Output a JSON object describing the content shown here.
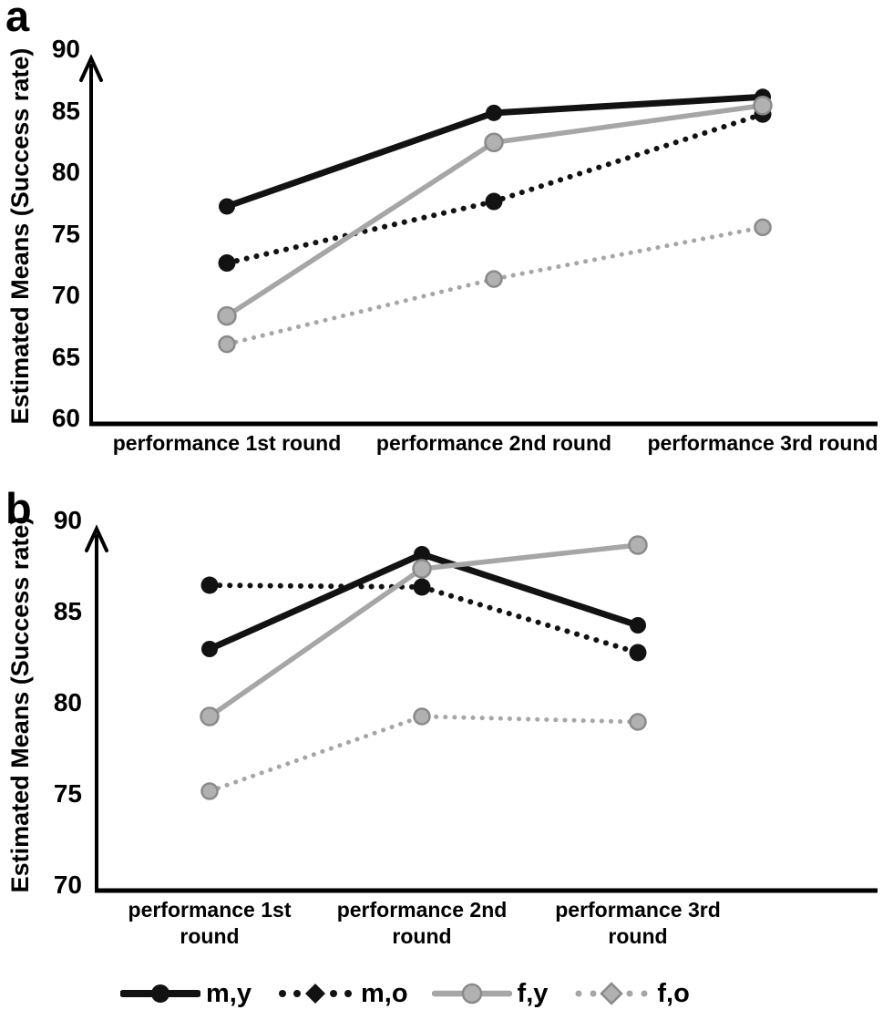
{
  "chart_data": [
    {
      "type": "line",
      "panel_label": "a",
      "title": "",
      "xlabel": "",
      "ylabel": "Estimated Means (Success rate)",
      "categories": [
        "performance 1st round",
        "performance 2nd round",
        "performance 3rd round"
      ],
      "ylim": [
        60,
        90
      ],
      "yticks": [
        90,
        85,
        80,
        75,
        70,
        65,
        60
      ],
      "grid": false,
      "axis_style": "arrow-y-axis, plain-baseline, no-tick-marks",
      "series": [
        {
          "name": "m,y",
          "style": "solid",
          "color": "#121212",
          "values": [
            77.3,
            84.9,
            86.2
          ]
        },
        {
          "name": "m,o",
          "style": "dotted",
          "color": "#121212",
          "values": [
            72.7,
            77.7,
            84.8
          ]
        },
        {
          "name": "f,y",
          "style": "solid",
          "color": "#a6a6a6",
          "values": [
            68.4,
            82.5,
            85.5
          ]
        },
        {
          "name": "f,o",
          "style": "dotted",
          "color": "#a6a6a6",
          "values": [
            66.1,
            71.4,
            75.6
          ]
        }
      ]
    },
    {
      "type": "line",
      "panel_label": "b",
      "title": "",
      "xlabel": "",
      "ylabel": "Estimated Means (Success rate)",
      "categories": [
        "performance 1st round",
        "performance 2nd round",
        "performance 3rd round"
      ],
      "ylim": [
        70,
        90
      ],
      "yticks": [
        90,
        85,
        80,
        75,
        70
      ],
      "grid": false,
      "axis_style": "arrow-y-axis, plain-baseline, no-tick-marks",
      "series": [
        {
          "name": "m,y",
          "style": "solid",
          "color": "#121212",
          "values": [
            83.0,
            88.2,
            84.3
          ]
        },
        {
          "name": "m,o",
          "style": "dotted",
          "color": "#121212",
          "values": [
            86.5,
            86.4,
            82.8
          ]
        },
        {
          "name": "f,y",
          "style": "solid",
          "color": "#a6a6a6",
          "values": [
            79.3,
            87.4,
            88.7
          ]
        },
        {
          "name": "f,o",
          "style": "dotted",
          "color": "#a6a6a6",
          "values": [
            75.2,
            79.3,
            79.0
          ]
        }
      ]
    }
  ],
  "legend": {
    "position": "bottom",
    "items": [
      {
        "label": "m,y",
        "style": "solid",
        "marker": "circle",
        "color": "#121212"
      },
      {
        "label": "m,o",
        "style": "dotted",
        "marker": "diamond",
        "color": "#121212"
      },
      {
        "label": "f,y",
        "style": "solid",
        "marker": "circle",
        "color": "#a6a6a6"
      },
      {
        "label": "f,o",
        "style": "dotted",
        "marker": "diamond",
        "color": "#a6a6a6"
      }
    ]
  },
  "colors": {
    "black_series": "#121212",
    "gray_series": "#a6a6a6",
    "gray_marker_fill": "#b1b1b1",
    "gray_marker_stroke": "#8a8a8a",
    "background": "#ffffff",
    "text": "#000000"
  }
}
